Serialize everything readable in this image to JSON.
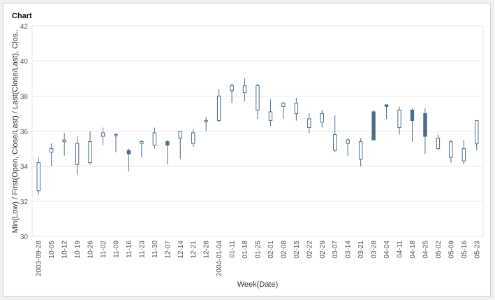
{
  "title": "Chart",
  "chart_data": {
    "type": "candlestick",
    "title": "Chart",
    "xlabel": "Week(Date)",
    "ylabel": "Min(Low) / First(Open, Close/Last) / Last(Close/Last), Clos..",
    "ylim": [
      30,
      42
    ],
    "yticks": [
      30,
      32,
      34,
      36,
      38,
      40,
      42
    ],
    "grid": true,
    "colors": {
      "box_stroke": "#4a6d8c",
      "box_fill_down": "#4a6d8c",
      "grid": "#e6e6e6"
    },
    "categories": [
      "2003-09-28",
      "10-05",
      "10-12",
      "10-19",
      "10-26",
      "11-02",
      "11-09",
      "11-16",
      "11-23",
      "11-30",
      "12-07",
      "12-14",
      "12-21",
      "12-28",
      "2004-01-04",
      "01-11",
      "01-18",
      "01-25",
      "02-01",
      "02-08",
      "02-15",
      "02-22",
      "02-29",
      "03-07",
      "03-14",
      "03-21",
      "03-28",
      "04-04",
      "04-11",
      "04-18",
      "04-25",
      "05-02",
      "05-09",
      "05-16",
      "05-23"
    ],
    "low": [
      32.4,
      34.0,
      34.6,
      33.5,
      34.1,
      35.2,
      34.8,
      33.7,
      34.5,
      35.0,
      34.1,
      34.4,
      35.1,
      36.0,
      36.5,
      37.6,
      37.7,
      36.7,
      36.3,
      36.7,
      36.6,
      35.9,
      36.2,
      34.8,
      34.6,
      34.0,
      35.5,
      36.7,
      35.8,
      35.4,
      34.7,
      34.9,
      34.2,
      34.1,
      34.9
    ],
    "high": [
      34.5,
      35.3,
      35.9,
      35.7,
      36.0,
      36.2,
      35.9,
      35.0,
      35.5,
      36.2,
      35.5,
      36.0,
      36.1,
      36.8,
      38.4,
      38.7,
      39.0,
      38.7,
      37.8,
      37.7,
      37.9,
      37.0,
      37.2,
      36.9,
      35.6,
      35.6,
      37.2,
      37.5,
      37.4,
      37.3,
      37.3,
      35.8,
      35.5,
      35.5,
      36.6
    ],
    "open": [
      32.6,
      34.8,
      35.4,
      34.1,
      34.2,
      35.7,
      35.8,
      34.9,
      35.3,
      35.2,
      35.4,
      35.6,
      35.3,
      36.6,
      36.6,
      38.3,
      38.2,
      37.2,
      36.6,
      37.4,
      37.0,
      36.2,
      36.5,
      34.9,
      35.3,
      34.4,
      37.1,
      37.5,
      36.2,
      37.2,
      37.0,
      35.0,
      34.5,
      34.3,
      35.3
    ],
    "close": [
      34.2,
      35.0,
      35.5,
      35.3,
      35.4,
      35.9,
      35.8,
      34.7,
      35.4,
      35.9,
      35.2,
      36.0,
      35.9,
      36.6,
      38.0,
      38.6,
      38.6,
      38.6,
      37.1,
      37.6,
      37.6,
      36.7,
      37.0,
      35.8,
      35.5,
      35.4,
      35.5,
      37.4,
      37.2,
      36.6,
      35.7,
      35.6,
      35.4,
      35.0,
      36.6
    ]
  }
}
